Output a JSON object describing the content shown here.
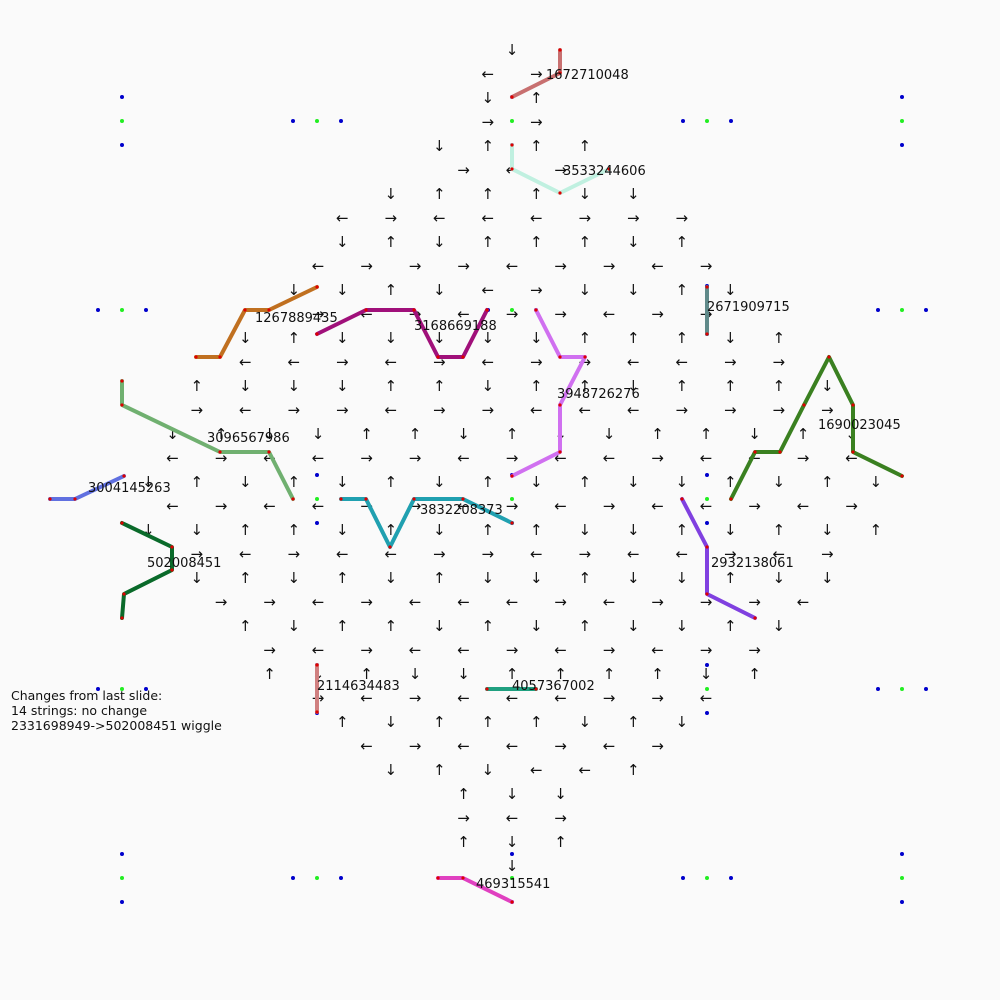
{
  "diagram": {
    "arrow_glyphs": {
      "up": "↑",
      "down": "↓",
      "left": "←",
      "right": "→"
    },
    "colors": {
      "background": "#fafafa",
      "blue_dot": "#0000cc",
      "green_dot": "#22ee22",
      "red_dot": "#dd0000"
    },
    "arrow_rows": [
      [
        "down"
      ],
      [
        "left",
        "right"
      ],
      [
        "down",
        "up"
      ],
      [
        "right",
        "right"
      ],
      [
        "down",
        "up",
        "up",
        "up"
      ],
      [
        "right",
        "left",
        "right"
      ],
      [
        "down",
        "up",
        "up",
        "up",
        "down",
        "down"
      ],
      [
        "left",
        "right",
        "left",
        "left",
        "left",
        "right",
        "right",
        "right"
      ],
      [
        "down",
        "up",
        "down",
        "up",
        "up",
        "up",
        "down",
        "up"
      ],
      [
        "left",
        "right",
        "right",
        "right",
        "left",
        "right",
        "right",
        "left",
        "right"
      ],
      [
        "down",
        "down",
        "up",
        "down",
        "left",
        "right",
        "down",
        "down",
        "up",
        "down"
      ],
      [
        "right",
        "left",
        "right",
        "left",
        "right",
        "right",
        "left",
        "right",
        "right"
      ],
      [
        "down",
        "up",
        "down",
        "down",
        "down",
        "down",
        "down",
        "up",
        "up",
        "up",
        "down",
        "up"
      ],
      [
        "left",
        "left",
        "right",
        "left",
        "right",
        "left",
        "right",
        "right",
        "left",
        "left",
        "right",
        "right"
      ],
      [
        "up",
        "down",
        "down",
        "down",
        "up",
        "up",
        "down",
        "up",
        "up",
        "down",
        "up",
        "up",
        "up",
        "down"
      ],
      [
        "right",
        "left",
        "right",
        "right",
        "left",
        "right",
        "right",
        "left",
        "left",
        "left",
        "right",
        "right",
        "right",
        "right"
      ],
      [
        "down",
        "up",
        "down",
        "down",
        "up",
        "up",
        "down",
        "up",
        "down",
        "down",
        "up",
        "up",
        "down",
        "up",
        "down"
      ],
      [
        "left",
        "right",
        "left",
        "left",
        "right",
        "right",
        "left",
        "right",
        "left",
        "left",
        "right",
        "left",
        "left",
        "right",
        "left"
      ],
      [
        "down",
        "up",
        "down",
        "up",
        "down",
        "up",
        "down",
        "up",
        "down",
        "up",
        "down",
        "down",
        "up",
        "down",
        "up",
        "down"
      ],
      [
        "left",
        "right",
        "left",
        "left",
        "right",
        "right",
        "left",
        "right",
        "left",
        "right",
        "left",
        "left",
        "right",
        "left",
        "right"
      ],
      [
        "down",
        "down",
        "up",
        "up",
        "down",
        "up",
        "down",
        "up",
        "up",
        "down",
        "down",
        "up",
        "down",
        "up",
        "down",
        "up"
      ],
      [
        "right",
        "left",
        "right",
        "left",
        "left",
        "right",
        "right",
        "left",
        "right",
        "left",
        "left",
        "right",
        "left",
        "right"
      ],
      [
        "down",
        "up",
        "down",
        "up",
        "down",
        "up",
        "down",
        "down",
        "up",
        "down",
        "down",
        "up",
        "down",
        "down"
      ],
      [
        "right",
        "right",
        "left",
        "right",
        "left",
        "left",
        "left",
        "right",
        "left",
        "right",
        "right",
        "right",
        "left"
      ],
      [
        "up",
        "down",
        "up",
        "up",
        "down",
        "up",
        "down",
        "up",
        "down",
        "down",
        "up",
        "down"
      ],
      [
        "right",
        "left",
        "right",
        "left",
        "left",
        "right",
        "left",
        "right",
        "left",
        "right",
        "right"
      ],
      [
        "up",
        "down",
        "up",
        "down",
        "down",
        "up",
        "up",
        "up",
        "up",
        "down",
        "up"
      ],
      [
        "right",
        "left",
        "right",
        "left",
        "left",
        "left",
        "right",
        "right",
        "left"
      ],
      [
        "up",
        "down",
        "up",
        "up",
        "up",
        "down",
        "up",
        "down"
      ],
      [
        "left",
        "right",
        "left",
        "left",
        "right",
        "left",
        "right"
      ],
      [
        "down",
        "up",
        "down",
        "left",
        "left",
        "up"
      ],
      [
        "up",
        "down",
        "down"
      ],
      [
        "right",
        "left",
        "right"
      ],
      [
        "up",
        "down",
        "up"
      ],
      [
        "down"
      ]
    ],
    "strings": [
      {
        "id": "1672710048",
        "color": "#c87070"
      },
      {
        "id": "3533244606",
        "color": "#c0f0e0"
      },
      {
        "id": "1267889435",
        "color": "#c07020"
      },
      {
        "id": "3168669188",
        "color": "#a0107a"
      },
      {
        "id": "2671909715",
        "color": "#608a8a"
      },
      {
        "id": "3948726276",
        "color": "#d070f0"
      },
      {
        "id": "1690023045",
        "color": "#3a8020"
      },
      {
        "id": "3096567986",
        "color": "#70b070"
      },
      {
        "id": "3004145263",
        "color": "#6070e0"
      },
      {
        "id": "3832208373",
        "color": "#20a0b0"
      },
      {
        "id": "2932138061",
        "color": "#8040e0"
      },
      {
        "id": "502008451",
        "color": "#0a6a2a"
      },
      {
        "id": "2114634483",
        "color": "#d08080"
      },
      {
        "id": "4057367002",
        "color": "#20a080"
      },
      {
        "id": "469315541",
        "color": "#e040c0"
      }
    ],
    "changes_note": {
      "line1": "Changes from last slide:",
      "line2": "14 strings: no change",
      "line3": "2331698949->502008451 wiggle"
    }
  }
}
